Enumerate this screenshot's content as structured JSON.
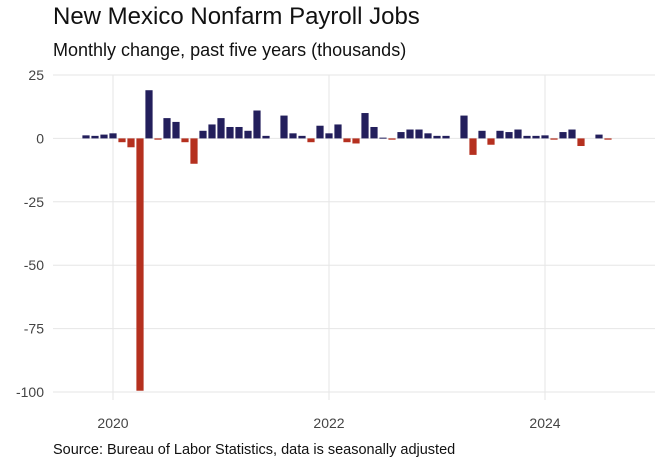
{
  "chart_data": {
    "type": "bar",
    "title": "New Mexico Nonfarm Payroll Jobs",
    "subtitle": "Monthly change, past five years (thousands)",
    "caption": "Source: Bureau of Labor Statistics, data is seasonally adjusted",
    "xlabel": "",
    "ylabel": "",
    "ylim": [
      -100,
      25
    ],
    "yticks": [
      25,
      0,
      -25,
      -50,
      -75,
      -100
    ],
    "ytick_labels": [
      "25",
      "0",
      "-25",
      "-50",
      "-75",
      "-100"
    ],
    "xticks": [
      "2020",
      "2022",
      "2024"
    ],
    "grid": true,
    "legend": "none",
    "colors": {
      "positive": "#231f5c",
      "negative": "#b5301f"
    },
    "categories": [
      "2019-10",
      "2019-11",
      "2019-12",
      "2020-01",
      "2020-02",
      "2020-03",
      "2020-04",
      "2020-05",
      "2020-06",
      "2020-07",
      "2020-08",
      "2020-09",
      "2020-10",
      "2020-11",
      "2020-12",
      "2021-01",
      "2021-02",
      "2021-03",
      "2021-04",
      "2021-05",
      "2021-06",
      "2021-07",
      "2021-08",
      "2021-09",
      "2021-10",
      "2021-11",
      "2021-12",
      "2022-01",
      "2022-02",
      "2022-03",
      "2022-04",
      "2022-05",
      "2022-06",
      "2022-07",
      "2022-08",
      "2022-09",
      "2022-10",
      "2022-11",
      "2022-12",
      "2023-01",
      "2023-02",
      "2023-03",
      "2023-04",
      "2023-05",
      "2023-06",
      "2023-07",
      "2023-08",
      "2023-09",
      "2023-10",
      "2023-11",
      "2023-12",
      "2024-01",
      "2024-02",
      "2024-03",
      "2024-04",
      "2024-05",
      "2024-06",
      "2024-07",
      "2024-08",
      "2024-09",
      "2024-10"
    ],
    "values": [
      1.2,
      1.0,
      1.5,
      2.0,
      -1.5,
      -3.5,
      -99.5,
      19.0,
      -0.5,
      8.0,
      6.5,
      -1.5,
      -10.0,
      3.0,
      5.5,
      8.0,
      4.5,
      4.5,
      3.0,
      11.0,
      1.0,
      0.0,
      9.0,
      2.0,
      1.0,
      -1.5,
      5.0,
      2.0,
      5.5,
      -1.5,
      -2.0,
      10.0,
      4.5,
      0.3,
      -0.5,
      2.5,
      3.5,
      3.5,
      2.0,
      1.0,
      1.0,
      0.0,
      9.0,
      -6.5,
      3.0,
      -2.5,
      3.0,
      2.5,
      3.5,
      1.0,
      1.0,
      1.2,
      -0.5,
      2.5,
      3.5,
      -3.0,
      0.0,
      1.5,
      -0.5,
      0.0,
      0.0
    ]
  }
}
